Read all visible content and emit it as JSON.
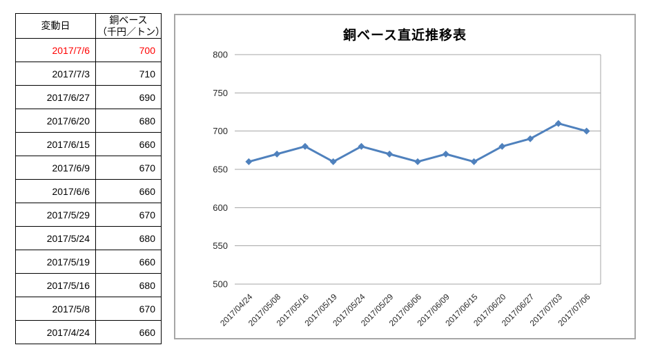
{
  "table": {
    "col1_header": "変動日",
    "col2_header_line1": "銅ベース",
    "col2_header_line2": "（千円／トン）",
    "highlight_color": "#ff0000",
    "rows": [
      {
        "date": "2017/7/6",
        "value": 700,
        "highlight": true
      },
      {
        "date": "2017/7/3",
        "value": 710,
        "highlight": false
      },
      {
        "date": "2017/6/27",
        "value": 690,
        "highlight": false
      },
      {
        "date": "2017/6/20",
        "value": 680,
        "highlight": false
      },
      {
        "date": "2017/6/15",
        "value": 660,
        "highlight": false
      },
      {
        "date": "2017/6/9",
        "value": 670,
        "highlight": false
      },
      {
        "date": "2017/6/6",
        "value": 660,
        "highlight": false
      },
      {
        "date": "2017/5/29",
        "value": 670,
        "highlight": false
      },
      {
        "date": "2017/5/24",
        "value": 680,
        "highlight": false
      },
      {
        "date": "2017/5/19",
        "value": 660,
        "highlight": false
      },
      {
        "date": "2017/5/16",
        "value": 680,
        "highlight": false
      },
      {
        "date": "2017/5/8",
        "value": 670,
        "highlight": false
      },
      {
        "date": "2017/4/24",
        "value": 660,
        "highlight": false
      }
    ]
  },
  "chart_data": {
    "type": "line",
    "title": "銅ベース直近推移表",
    "categories": [
      "2017/04/24",
      "2017/05/08",
      "2017/05/16",
      "2017/05/19",
      "2017/05/24",
      "2017/05/29",
      "2017/06/06",
      "2017/06/09",
      "2017/06/15",
      "2017/06/20",
      "2017/06/27",
      "2017/07/03",
      "2017/07/06"
    ],
    "series": [
      {
        "name": "銅ベース",
        "values": [
          660,
          670,
          680,
          660,
          680,
          670,
          660,
          670,
          660,
          680,
          690,
          710,
          700
        ]
      }
    ],
    "xlabel": "",
    "ylabel": "",
    "ylim": [
      500,
      800
    ],
    "ytick_step": 50,
    "grid": true,
    "legend_position": "none",
    "line_color": "#4f81bd",
    "marker": "diamond",
    "grid_color": "#a6a6a6",
    "tick_label_color": "#262626"
  }
}
